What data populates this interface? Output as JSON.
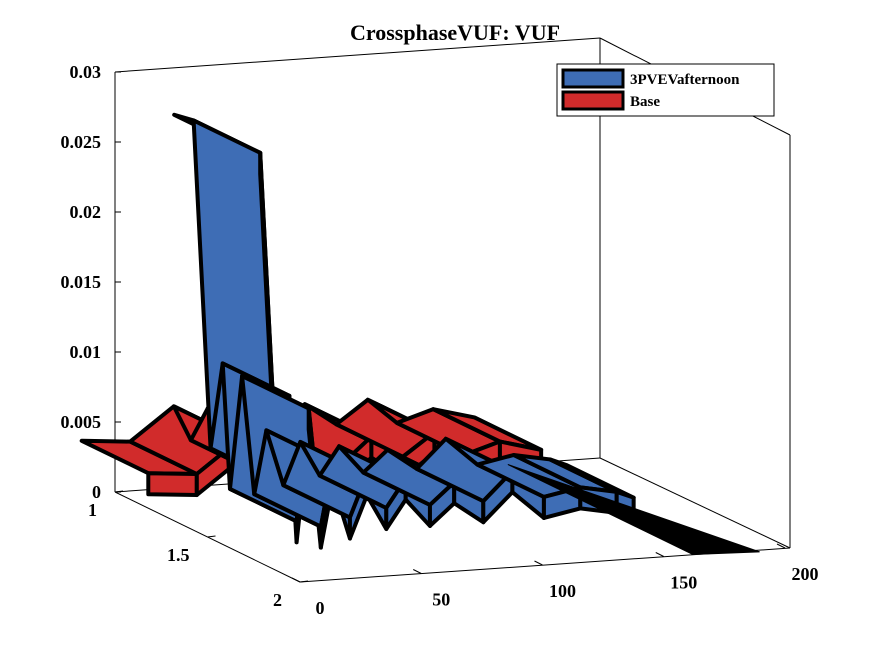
{
  "chart_data": {
    "type": "ribbon3d",
    "title": "CrossphaseVUF: VUF",
    "xlabel": "",
    "ylabel": "",
    "zlabel": "",
    "xlim": [
      0,
      200
    ],
    "ylim": [
      1,
      2
    ],
    "zlim": [
      0,
      0.03
    ],
    "x_ticks": [
      "0",
      "50",
      "100",
      "150",
      "200"
    ],
    "y_ticks": [
      "1",
      "1.5",
      "2"
    ],
    "z_ticks": [
      "0",
      "0.005",
      "0.01",
      "0.015",
      "0.02",
      "0.025",
      "0.03"
    ],
    "legend_position": "top-right",
    "series": [
      {
        "name": "3PVEVafternoon",
        "color": "#3e6db5",
        "y": 1.5,
        "points": [
          [
            0,
            0.029
          ],
          [
            8,
            0.0285
          ],
          [
            15,
            0.005
          ],
          [
            20,
            0.011
          ],
          [
            23,
            0.002
          ],
          [
            28,
            0.01
          ],
          [
            33,
            0.0015
          ],
          [
            38,
            0.006
          ],
          [
            45,
            0.002
          ],
          [
            52,
            0.005
          ],
          [
            60,
            0.0025
          ],
          [
            68,
            0.0045
          ],
          [
            78,
            0.0025
          ],
          [
            88,
            0.004
          ],
          [
            100,
            0.0025
          ],
          [
            112,
            0.0045
          ],
          [
            125,
            0.0025
          ],
          [
            140,
            0.003
          ],
          [
            155,
            0.0025
          ],
          [
            162,
            0.002
          ]
        ]
      },
      {
        "name": "Base",
        "color": "#d12b2b",
        "y": 1.0,
        "points": [
          [
            0,
            0.0025
          ],
          [
            20,
            0.0022
          ],
          [
            38,
            0.0045
          ],
          [
            45,
            0.002
          ],
          [
            52,
            0.0042
          ],
          [
            60,
            0.0022
          ],
          [
            68,
            0.004
          ],
          [
            80,
            0.0022
          ],
          [
            92,
            0.004
          ],
          [
            105,
            0.0024
          ],
          [
            118,
            0.004
          ],
          [
            130,
            0.0022
          ],
          [
            145,
            0.003
          ],
          [
            162,
            0.0022
          ]
        ]
      }
    ]
  }
}
